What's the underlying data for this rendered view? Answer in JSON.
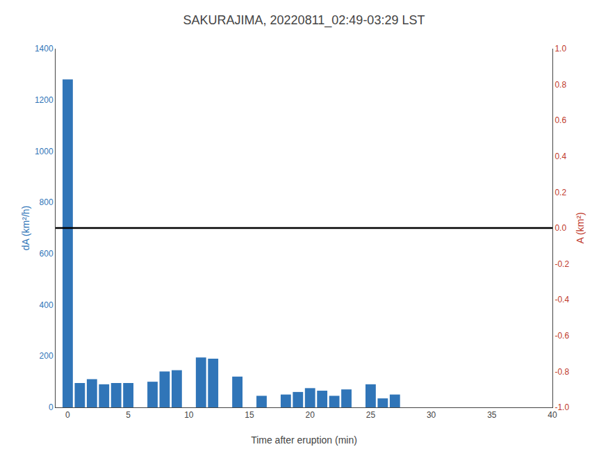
{
  "chart_data": {
    "type": "bar",
    "title": "SAKURAJIMA, 20220811_02:49-03:29 LST",
    "xlabel": "Time after eruption (min)",
    "ylabel": "dA (km²/h)",
    "y2label": "A (km²)",
    "x": [
      0,
      1,
      2,
      3,
      4,
      5,
      6,
      7,
      8,
      9,
      10,
      11,
      12,
      13,
      14,
      15,
      16,
      17,
      18,
      19,
      20,
      21,
      22,
      23,
      24,
      25,
      26,
      27,
      28,
      29,
      30,
      31,
      32,
      33,
      34,
      35,
      36,
      37,
      38,
      39
    ],
    "series": [
      {
        "color": "#3075b8",
        "axis": "y",
        "values": [
          1280,
          95,
          110,
          90,
          95,
          95,
          0,
          100,
          140,
          145,
          0,
          195,
          190,
          0,
          120,
          0,
          45,
          0,
          50,
          60,
          75,
          65,
          45,
          70,
          0,
          90,
          35,
          50,
          0,
          0,
          0,
          0,
          0,
          0,
          0,
          0,
          0,
          0,
          0,
          0
        ]
      }
    ],
    "xlim": [
      -1,
      40
    ],
    "xticks": [
      0,
      5,
      10,
      15,
      20,
      25,
      30,
      35,
      40
    ],
    "ylim": [
      0,
      1400
    ],
    "yticks": [
      0,
      200,
      400,
      600,
      800,
      1000,
      1200,
      1400
    ],
    "y2lim": [
      -1,
      1
    ],
    "y2ticks": [
      {
        "value": -1,
        "label": "-1.0"
      },
      -0.8,
      -0.6,
      -0.4,
      -0.2,
      {
        "value": 0,
        "label": "0.0"
      },
      0.2,
      0.4,
      0.6,
      0.8,
      {
        "value": 1,
        "label": "1.0"
      }
    ],
    "reference_lines": [
      {
        "y": 700,
        "color": "black"
      }
    ],
    "axis_colors": {
      "y": "#3075b8",
      "y2": "#c0392b"
    },
    "grid": false
  }
}
